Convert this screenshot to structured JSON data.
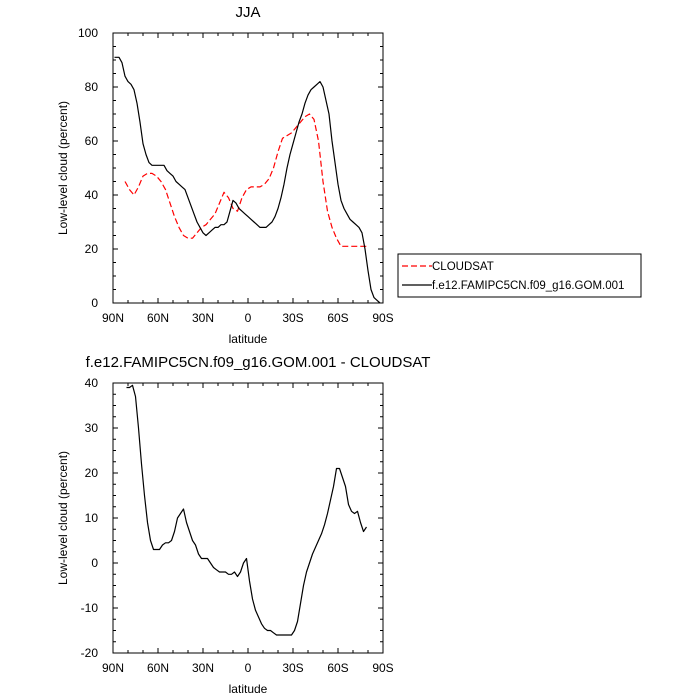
{
  "chart_data": [
    {
      "type": "line",
      "title": "JJA",
      "xlabel": "latitude",
      "ylabel": "Low-level cloud (percent)",
      "xlim": [
        90,
        -90
      ],
      "ylim": [
        0,
        100
      ],
      "x_ticks": [
        {
          "value": 90,
          "label": "90N"
        },
        {
          "value": 60,
          "label": "60N"
        },
        {
          "value": 30,
          "label": "30N"
        },
        {
          "value": 0,
          "label": "0"
        },
        {
          "value": -30,
          "label": "30S"
        },
        {
          "value": -60,
          "label": "60S"
        },
        {
          "value": -90,
          "label": "90S"
        }
      ],
      "y_ticks": [
        0,
        20,
        40,
        60,
        80,
        100
      ],
      "legend": {
        "placement": "right"
      },
      "series": [
        {
          "name": "CLOUDSAT",
          "color": "#ff0000",
          "dash": "dashed",
          "x": [
            82,
            79,
            76,
            73,
            70,
            67,
            64,
            61,
            58,
            55,
            52,
            49,
            46,
            43,
            40,
            37,
            34,
            31,
            28,
            25,
            22,
            19,
            16,
            13,
            10,
            7,
            4,
            1,
            -2,
            -5,
            -8,
            -11,
            -14,
            -17,
            -20,
            -23,
            -26,
            -29,
            -32,
            -35,
            -38,
            -41,
            -44,
            -47,
            -50,
            -53,
            -56,
            -59,
            -62,
            -65,
            -68,
            -71,
            -74,
            -77,
            -80
          ],
          "y": [
            45,
            42,
            40,
            43,
            47,
            48,
            48,
            47,
            45,
            42,
            37,
            32,
            28,
            25,
            24,
            24,
            26,
            28,
            29,
            31,
            33,
            37,
            41,
            39,
            35,
            34,
            39,
            42,
            43,
            43,
            43,
            44,
            46,
            50,
            56,
            61,
            62,
            63,
            65,
            67,
            69,
            70,
            68,
            60,
            45,
            34,
            28,
            24,
            21,
            21,
            21,
            21,
            21,
            21,
            21
          ]
        },
        {
          "name": "f.e12.FAMIPC5CN.f09_g16.GOM.001",
          "color": "#000000",
          "dash": "solid",
          "x": [
            89,
            86,
            84,
            82,
            80,
            78,
            76,
            74,
            72,
            70,
            68,
            66,
            64,
            62,
            60,
            58,
            56,
            54,
            52,
            50,
            48,
            46,
            44,
            42,
            40,
            38,
            36,
            34,
            32,
            30,
            28,
            26,
            24,
            22,
            20,
            18,
            16,
            14,
            12,
            10,
            8,
            6,
            4,
            2,
            0,
            -2,
            -4,
            -6,
            -8,
            -10,
            -12,
            -14,
            -16,
            -18,
            -20,
            -22,
            -24,
            -26,
            -28,
            -30,
            -32,
            -34,
            -36,
            -38,
            -40,
            -42,
            -44,
            -46,
            -48,
            -50,
            -52,
            -54,
            -56,
            -58,
            -60,
            -62,
            -64,
            -66,
            -68,
            -70,
            -72,
            -74,
            -76,
            -78,
            -80,
            -82,
            -84,
            -86,
            -88
          ],
          "y": [
            91,
            91,
            89,
            84,
            82,
            81,
            79,
            74,
            67,
            59,
            55,
            52,
            51,
            51,
            51,
            51,
            51,
            49,
            48,
            47,
            45,
            44,
            43,
            42,
            39,
            36,
            33,
            30,
            28,
            26,
            25,
            26,
            27,
            28,
            28,
            29,
            29,
            30,
            34,
            38,
            37,
            35,
            34,
            33,
            32,
            31,
            30,
            29,
            28,
            28,
            28,
            29,
            30,
            32,
            35,
            39,
            44,
            50,
            55,
            59,
            63,
            67,
            70,
            74,
            77,
            79,
            80,
            81,
            82,
            80,
            75,
            70,
            60,
            52,
            44,
            38,
            35,
            33,
            31,
            30,
            29,
            28,
            26,
            20,
            12,
            5,
            2,
            1,
            0
          ]
        }
      ],
      "grid": false
    },
    {
      "type": "line",
      "title": "f.e12.FAMIPC5CN.f09_g16.GOM.001 - CLOUDSAT",
      "xlabel": "latitude",
      "ylabel": "Low-level cloud (percent)",
      "xlim": [
        90,
        -90
      ],
      "ylim": [
        -20,
        40
      ],
      "x_ticks": [
        {
          "value": 90,
          "label": "90N"
        },
        {
          "value": 60,
          "label": "60N"
        },
        {
          "value": 30,
          "label": "30N"
        },
        {
          "value": 0,
          "label": "0"
        },
        {
          "value": -30,
          "label": "30S"
        },
        {
          "value": -60,
          "label": "60S"
        },
        {
          "value": -90,
          "label": "90S"
        }
      ],
      "y_ticks": [
        -20,
        -10,
        0,
        10,
        20,
        30,
        40
      ],
      "series": [
        {
          "color": "#000000",
          "dash": "solid",
          "x": [
            81,
            79,
            77,
            75,
            73,
            71,
            69,
            67,
            65,
            63,
            61,
            59,
            57,
            55,
            53,
            51,
            49,
            47,
            45,
            43,
            41,
            39,
            37,
            35,
            33,
            31,
            29,
            27,
            25,
            23,
            21,
            19,
            17,
            15,
            13,
            11,
            9,
            7,
            5,
            3,
            1,
            -1,
            -3,
            -5,
            -7,
            -9,
            -11,
            -13,
            -15,
            -17,
            -19,
            -21,
            -23,
            -25,
            -27,
            -29,
            -31,
            -33,
            -35,
            -37,
            -39,
            -41,
            -43,
            -45,
            -47,
            -49,
            -51,
            -53,
            -55,
            -57,
            -59,
            -61,
            -63,
            -65,
            -67,
            -69,
            -71,
            -73,
            -75,
            -77,
            -79
          ],
          "y": [
            39,
            39,
            39.5,
            37,
            30,
            22,
            15,
            9,
            5,
            3,
            3,
            3,
            4,
            4.5,
            4.5,
            5,
            7,
            10,
            11,
            12,
            9,
            7,
            5,
            4,
            2,
            1,
            1,
            1,
            0,
            -1,
            -1.5,
            -2,
            -2,
            -2,
            -2.5,
            -2.5,
            -2,
            -3,
            -2,
            0,
            1,
            -4,
            -8,
            -10.5,
            -12,
            -13.5,
            -14.5,
            -15,
            -15,
            -15.5,
            -16,
            -16,
            -16,
            -16,
            -16,
            -16,
            -15,
            -13,
            -9,
            -5,
            -2,
            0,
            2,
            3.5,
            5,
            6.5,
            8.5,
            11,
            14,
            17,
            21,
            21,
            19,
            17,
            13,
            11.5,
            11,
            11.5,
            9,
            7,
            8
          ]
        }
      ],
      "grid": false
    }
  ]
}
